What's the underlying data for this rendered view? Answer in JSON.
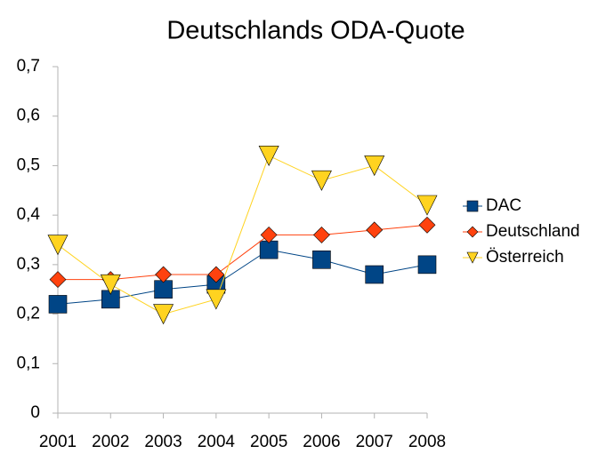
{
  "chart_data": {
    "type": "line",
    "title": "Deutschlands ODA-Quote",
    "categories": [
      "2001",
      "2002",
      "2003",
      "2004",
      "2005",
      "2006",
      "2007",
      "2008"
    ],
    "series": [
      {
        "name": "DAC",
        "color": "#004586",
        "marker": "square",
        "values": [
          0.22,
          0.23,
          0.25,
          0.26,
          0.33,
          0.31,
          0.28,
          0.3
        ]
      },
      {
        "name": "Deutschland",
        "color": "#ff420e",
        "marker": "diamond",
        "values": [
          0.27,
          0.27,
          0.28,
          0.28,
          0.36,
          0.36,
          0.37,
          0.38
        ]
      },
      {
        "name": "Österreich",
        "color": "#ffd320",
        "marker": "triangle-down",
        "values": [
          0.34,
          0.26,
          0.2,
          0.23,
          0.52,
          0.47,
          0.5,
          0.42
        ]
      }
    ],
    "ylim": [
      0,
      0.7
    ],
    "yticks": [
      0,
      {
        "value": 0.1,
        "label": "0,1"
      },
      {
        "value": 0.2,
        "label": "0,2"
      },
      {
        "value": 0.3,
        "label": "0,3"
      },
      {
        "value": 0.4,
        "label": "0,4"
      },
      {
        "value": 0.5,
        "label": "0,5"
      },
      {
        "value": 0.6,
        "label": "0,6"
      },
      {
        "value": 0.7,
        "label": "0,7"
      }
    ],
    "grid": false,
    "legend": "right"
  }
}
